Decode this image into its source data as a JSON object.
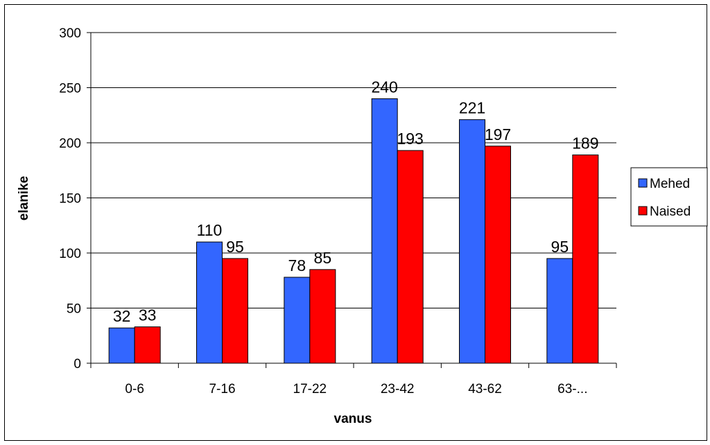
{
  "chart_data": {
    "type": "bar",
    "title": "",
    "xlabel": "vanus",
    "ylabel": "elanike",
    "categories": [
      "0-6",
      "7-16",
      "17-22",
      "23-42",
      "43-62",
      "63-..."
    ],
    "series": [
      {
        "name": "Mehed",
        "values": [
          32,
          110,
          78,
          240,
          221,
          95
        ],
        "color": "#3366FF"
      },
      {
        "name": "Naised",
        "values": [
          33,
          95,
          85,
          193,
          197,
          189
        ],
        "color": "#FF0000"
      }
    ],
    "ylim": [
      0,
      300
    ],
    "yticks": [
      "0",
      "50",
      "100",
      "150",
      "200",
      "250",
      "300"
    ],
    "grid": true,
    "legend_position": "right"
  }
}
